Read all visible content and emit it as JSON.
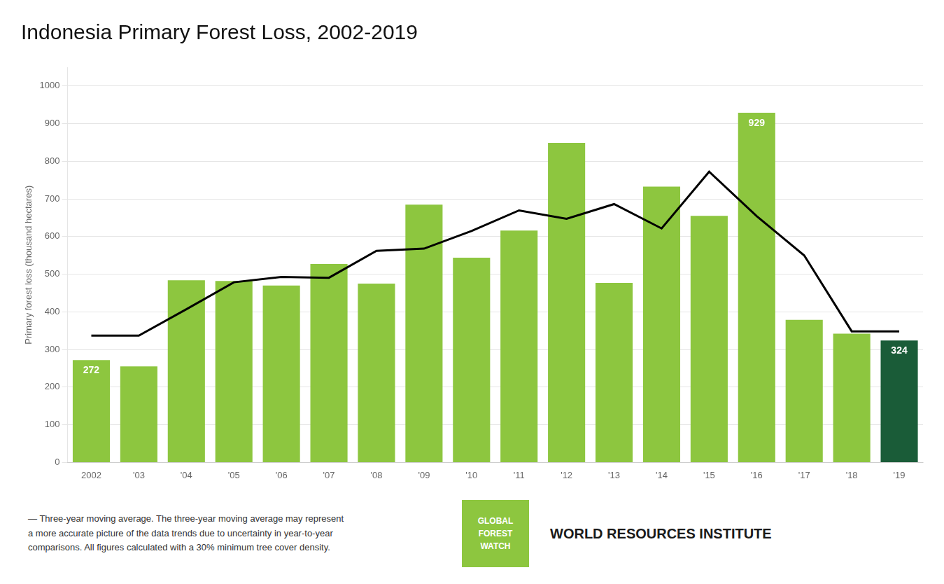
{
  "chart_data": {
    "type": "bar",
    "title": "Indonesia Primary Forest Loss, 2002-2019",
    "ylabel": "Primary forest loss (thousand hectares)",
    "categories": [
      "2002",
      "'03",
      "'04",
      "'05",
      "'06",
      "'07",
      "'08",
      "'09",
      "'10",
      "'11",
      "'12",
      "'13",
      "'14",
      "'15",
      "'16",
      "'17",
      "'18",
      "'19"
    ],
    "series": [
      {
        "type": "bar",
        "values": [
          272,
          255,
          484,
          482,
          470,
          527,
          475,
          685,
          544,
          616,
          849,
          477,
          733,
          655,
          929,
          379,
          342,
          324
        ],
        "colors": [
          "#8dc63f",
          "#8dc63f",
          "#8dc63f",
          "#8dc63f",
          "#8dc63f",
          "#8dc63f",
          "#8dc63f",
          "#8dc63f",
          "#8dc63f",
          "#8dc63f",
          "#8dc63f",
          "#8dc63f",
          "#8dc63f",
          "#8dc63f",
          "#8dc63f",
          "#8dc63f",
          "#8dc63f",
          "#1a5c38"
        ],
        "value_labels": [
          "272",
          null,
          null,
          null,
          null,
          null,
          null,
          null,
          null,
          null,
          null,
          null,
          null,
          null,
          "929",
          null,
          null,
          "324"
        ]
      },
      {
        "type": "line",
        "color": "#000000",
        "values": [
          337.0,
          337.0,
          407.0,
          478.6666666666667,
          493.0,
          490.6666666666667,
          562.3333333333334,
          568.0,
          615.0,
          669.6666666666666,
          647.3333333333334,
          686.3333333333334,
          621.6666666666666,
          772.3333333333334,
          654.3333333333334,
          550.0,
          348.3333333333333,
          348.3333333333333
        ]
      }
    ],
    "data_labels": true,
    "ylim": [
      0,
      1050
    ],
    "yticks": [
      0,
      100,
      200,
      300,
      400,
      500,
      600,
      700,
      800,
      900,
      1000
    ],
    "grid": true,
    "annotations": [
      "—  Three-year moving average. The three-year moving average may represent",
      "a more accurate picture of the data trends due to uncertainty in year-to-year",
      "comparisons. All figures calculated with a 30% minimum tree cover density.",
      "GLOBAL",
      "FOREST",
      "WATCH",
      "WORLD RESOURCES INSTITUTE"
    ]
  }
}
